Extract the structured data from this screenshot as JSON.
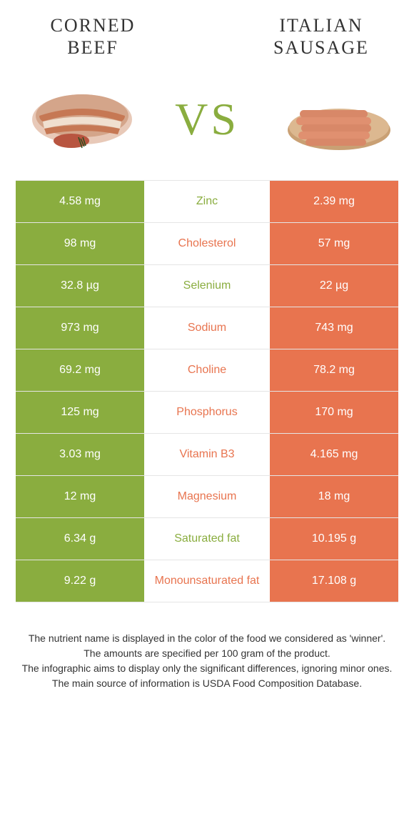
{
  "foods": {
    "left": {
      "title_line1": "CORNED",
      "title_line2": "BEEF"
    },
    "right": {
      "title_line1": "ITALIAN",
      "title_line2": "SAUSAGE"
    }
  },
  "vs_label": "VS",
  "colors": {
    "green": "#8aad3f",
    "orange": "#e8744f"
  },
  "rows": [
    {
      "left": "4.58 mg",
      "name": "Zinc",
      "right": "2.39 mg",
      "winner": "green"
    },
    {
      "left": "98 mg",
      "name": "Cholesterol",
      "right": "57 mg",
      "winner": "orange"
    },
    {
      "left": "32.8 µg",
      "name": "Selenium",
      "right": "22 µg",
      "winner": "green"
    },
    {
      "left": "973 mg",
      "name": "Sodium",
      "right": "743 mg",
      "winner": "orange"
    },
    {
      "left": "69.2 mg",
      "name": "Choline",
      "right": "78.2 mg",
      "winner": "orange"
    },
    {
      "left": "125 mg",
      "name": "Phosphorus",
      "right": "170 mg",
      "winner": "orange"
    },
    {
      "left": "3.03 mg",
      "name": "Vitamin B3",
      "right": "4.165 mg",
      "winner": "orange"
    },
    {
      "left": "12 mg",
      "name": "Magnesium",
      "right": "18 mg",
      "winner": "orange"
    },
    {
      "left": "6.34 g",
      "name": "Saturated fat",
      "right": "10.195 g",
      "winner": "green"
    },
    {
      "left": "9.22 g",
      "name": "Monounsaturated fat",
      "right": "17.108 g",
      "winner": "orange"
    }
  ],
  "footer": {
    "line1": "The nutrient name is displayed in the color of the food we considered as 'winner'.",
    "line2": "The amounts are specified per 100 gram of the product.",
    "line3": "The infographic aims to display only the significant differences, ignoring minor ones.",
    "line4": "The main source of information is USDA Food Composition Database."
  }
}
